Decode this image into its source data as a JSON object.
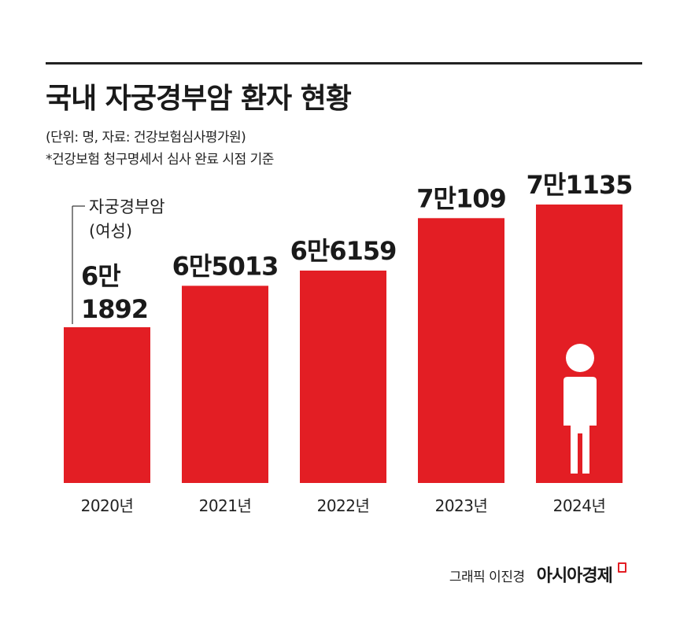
{
  "title": "국내 자궁경부암 환자 현황",
  "notes": {
    "unit_source": "(단위: 명, 자료: 건강보험심사평가원)",
    "basis": "*건강보험 청구명세서 심사 완료 시점 기준"
  },
  "callout": {
    "line1": "자궁경부암",
    "line2": "(여성)"
  },
  "credit": {
    "author": "그래픽 이진경",
    "brand": "아시아경제"
  },
  "colors": {
    "bar": "#e31e24",
    "text": "#1a1a1a",
    "icon": "#ffffff"
  },
  "icons": [
    "person-icon"
  ],
  "chart_data": {
    "type": "bar",
    "categories": [
      "2020년",
      "2021년",
      "2022년",
      "2023년",
      "2024년"
    ],
    "values": [
      61892,
      65013,
      66159,
      70109,
      71135
    ],
    "value_labels": [
      "6만\n1892",
      "6만5013",
      "6만6159",
      "7만109",
      "7만1135"
    ],
    "title": "국내 자궁경부암 환자 현황",
    "xlabel": "",
    "ylabel": "",
    "grid": false,
    "legend": "none"
  }
}
